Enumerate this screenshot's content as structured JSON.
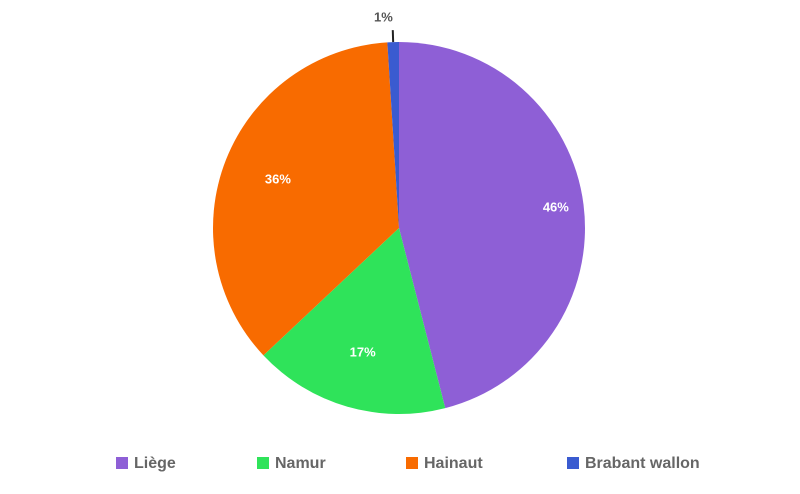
{
  "chart_data": {
    "type": "pie",
    "categories": [
      "Liège",
      "Namur",
      "Hainaut",
      "Brabant wallon"
    ],
    "values": [
      46,
      17,
      36,
      1
    ],
    "value_labels": [
      "46%",
      "17%",
      "36%",
      "1%"
    ],
    "colors": [
      "#8e5fd6",
      "#2fe35a",
      "#f86b00",
      "#3a5bd0"
    ],
    "legend": "bottom"
  }
}
